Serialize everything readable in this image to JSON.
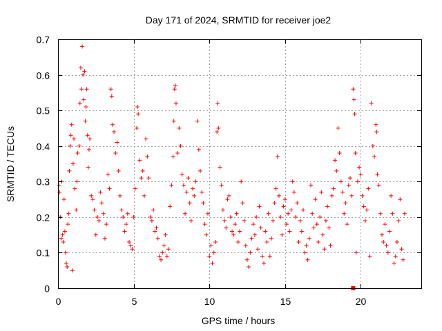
{
  "chart_data": {
    "type": "scatter",
    "title": "Day 171 of 2024, SRMTID for receiver joe2",
    "xlabel": "GPS time / hours",
    "ylabel": "SRMTID / TECUs",
    "xlim": [
      0,
      24
    ],
    "ylim": [
      0,
      0.7
    ],
    "xticks": [
      0,
      5,
      10,
      15,
      20
    ],
    "xtick_labels": [
      "0",
      "5",
      "10",
      "15",
      "20"
    ],
    "yticks": [
      0,
      0.1,
      0.2,
      0.3,
      0.4,
      0.5,
      0.6,
      0.7
    ],
    "ytick_labels": [
      "0",
      "0.1",
      "0.2",
      "0.3",
      "0.4",
      "0.5",
      "0.6",
      "0.7"
    ],
    "grid": true,
    "marker": "+",
    "color": "#ff0000",
    "series": [
      {
        "name": "SRMTID",
        "points": [
          [
            0.05,
            0.29
          ],
          [
            0.1,
            0.27
          ],
          [
            0.15,
            0.2
          ],
          [
            0.2,
            0.14
          ],
          [
            0.25,
            0.3
          ],
          [
            0.3,
            0.15
          ],
          [
            0.35,
            0.13
          ],
          [
            0.4,
            0.25
          ],
          [
            0.45,
            0.16
          ],
          [
            0.5,
            0.1
          ],
          [
            0.55,
            0.07
          ],
          [
            0.6,
            0.06
          ],
          [
            0.65,
            0.18
          ],
          [
            0.7,
            0.21
          ],
          [
            0.75,
            0.33
          ],
          [
            0.8,
            0.4
          ],
          [
            0.85,
            0.43
          ],
          [
            0.9,
            0.46
          ],
          [
            0.95,
            0.05
          ],
          [
            1.0,
            0.35
          ],
          [
            1.05,
            0.42
          ],
          [
            1.1,
            0.28
          ],
          [
            1.2,
            0.22
          ],
          [
            1.25,
            0.3
          ],
          [
            1.3,
            0.38
          ],
          [
            1.4,
            0.4
          ],
          [
            1.45,
            0.52
          ],
          [
            1.5,
            0.62
          ],
          [
            1.55,
            0.56
          ],
          [
            1.6,
            0.68
          ],
          [
            1.65,
            0.6
          ],
          [
            1.7,
            0.53
          ],
          [
            1.75,
            0.61
          ],
          [
            1.8,
            0.47
          ],
          [
            1.85,
            0.51
          ],
          [
            1.9,
            0.56
          ],
          [
            1.95,
            0.43
          ],
          [
            2.0,
            0.34
          ],
          [
            2.05,
            0.39
          ],
          [
            2.1,
            0.42
          ],
          [
            2.2,
            0.26
          ],
          [
            2.3,
            0.25
          ],
          [
            2.4,
            0.22
          ],
          [
            2.5,
            0.15
          ],
          [
            2.6,
            0.2
          ],
          [
            2.7,
            0.19
          ],
          [
            2.8,
            0.27
          ],
          [
            2.9,
            0.24
          ],
          [
            3.0,
            0.21
          ],
          [
            3.1,
            0.14
          ],
          [
            3.2,
            0.18
          ],
          [
            3.3,
            0.32
          ],
          [
            3.4,
            0.28
          ],
          [
            3.5,
            0.56
          ],
          [
            3.55,
            0.54
          ],
          [
            3.6,
            0.46
          ],
          [
            3.7,
            0.44
          ],
          [
            3.8,
            0.38
          ],
          [
            3.9,
            0.41
          ],
          [
            4.0,
            0.33
          ],
          [
            4.1,
            0.26
          ],
          [
            4.2,
            0.22
          ],
          [
            4.3,
            0.2
          ],
          [
            4.4,
            0.16
          ],
          [
            4.5,
            0.18
          ],
          [
            4.6,
            0.21
          ],
          [
            4.7,
            0.13
          ],
          [
            4.8,
            0.12
          ],
          [
            4.9,
            0.11
          ],
          [
            5.0,
            0.2
          ],
          [
            5.1,
            0.28
          ],
          [
            5.2,
            0.45
          ],
          [
            5.25,
            0.51
          ],
          [
            5.3,
            0.49
          ],
          [
            5.4,
            0.36
          ],
          [
            5.5,
            0.31
          ],
          [
            5.6,
            0.33
          ],
          [
            5.7,
            0.26
          ],
          [
            5.8,
            0.42
          ],
          [
            5.9,
            0.37
          ],
          [
            6.0,
            0.31
          ],
          [
            6.1,
            0.2
          ],
          [
            6.2,
            0.19
          ],
          [
            6.3,
            0.22
          ],
          [
            6.4,
            0.16
          ],
          [
            6.5,
            0.17
          ],
          [
            6.6,
            0.14
          ],
          [
            6.7,
            0.09
          ],
          [
            6.8,
            0.08
          ],
          [
            6.9,
            0.1
          ],
          [
            7.0,
            0.12
          ],
          [
            7.1,
            0.15
          ],
          [
            7.2,
            0.09
          ],
          [
            7.3,
            0.11
          ],
          [
            7.4,
            0.23
          ],
          [
            7.5,
            0.29
          ],
          [
            7.6,
            0.37
          ],
          [
            7.65,
            0.47
          ],
          [
            7.7,
            0.56
          ],
          [
            7.75,
            0.57
          ],
          [
            7.8,
            0.52
          ],
          [
            7.9,
            0.38
          ],
          [
            8.0,
            0.45
          ],
          [
            8.1,
            0.4
          ],
          [
            8.2,
            0.32
          ],
          [
            8.3,
            0.29
          ],
          [
            8.4,
            0.21
          ],
          [
            8.5,
            0.27
          ],
          [
            8.6,
            0.31
          ],
          [
            8.7,
            0.24
          ],
          [
            8.8,
            0.19
          ],
          [
            8.9,
            0.28
          ],
          [
            9.0,
            0.26
          ],
          [
            9.1,
            0.3
          ],
          [
            9.2,
            0.47
          ],
          [
            9.3,
            0.39
          ],
          [
            9.4,
            0.33
          ],
          [
            9.5,
            0.27
          ],
          [
            9.6,
            0.24
          ],
          [
            9.7,
            0.18
          ],
          [
            9.8,
            0.15
          ],
          [
            9.9,
            0.21
          ],
          [
            10.0,
            0.09
          ],
          [
            10.1,
            0.12
          ],
          [
            10.2,
            0.07
          ],
          [
            10.3,
            0.1
          ],
          [
            10.4,
            0.13
          ],
          [
            10.5,
            0.44
          ],
          [
            10.55,
            0.52
          ],
          [
            10.6,
            0.45
          ],
          [
            10.7,
            0.34
          ],
          [
            10.8,
            0.29
          ],
          [
            10.9,
            0.22
          ],
          [
            11.0,
            0.19
          ],
          [
            11.1,
            0.17
          ],
          [
            11.2,
            0.25
          ],
          [
            11.3,
            0.26
          ],
          [
            11.4,
            0.2
          ],
          [
            11.5,
            0.16
          ],
          [
            11.6,
            0.15
          ],
          [
            11.7,
            0.18
          ],
          [
            11.8,
            0.21
          ],
          [
            11.9,
            0.13
          ],
          [
            12.0,
            0.16
          ],
          [
            12.1,
            0.3
          ],
          [
            12.2,
            0.24
          ],
          [
            12.3,
            0.19
          ],
          [
            12.4,
            0.12
          ],
          [
            12.5,
            0.08
          ],
          [
            12.6,
            0.06
          ],
          [
            12.7,
            0.1
          ],
          [
            12.8,
            0.14
          ],
          [
            12.9,
            0.18
          ],
          [
            13.0,
            0.15
          ],
          [
            13.1,
            0.2
          ],
          [
            13.2,
            0.11
          ],
          [
            13.3,
            0.23
          ],
          [
            13.4,
            0.17
          ],
          [
            13.5,
            0.09
          ],
          [
            13.6,
            0.07
          ],
          [
            13.7,
            0.16
          ],
          [
            13.8,
            0.13
          ],
          [
            13.9,
            0.21
          ],
          [
            14.0,
            0.09
          ],
          [
            14.1,
            0.14
          ],
          [
            14.2,
            0.19
          ],
          [
            14.3,
            0.24
          ],
          [
            14.4,
            0.28
          ],
          [
            14.5,
            0.37
          ],
          [
            14.6,
            0.26
          ],
          [
            14.7,
            0.2
          ],
          [
            14.8,
            0.15
          ],
          [
            14.9,
            0.23
          ],
          [
            15.0,
            0.25
          ],
          [
            15.1,
            0.18
          ],
          [
            15.2,
            0.21
          ],
          [
            15.3,
            0.16
          ],
          [
            15.4,
            0.22
          ],
          [
            15.5,
            0.3
          ],
          [
            15.6,
            0.27
          ],
          [
            15.7,
            0.2
          ],
          [
            15.8,
            0.24
          ],
          [
            15.9,
            0.13
          ],
          [
            16.0,
            0.19
          ],
          [
            16.1,
            0.16
          ],
          [
            16.2,
            0.22
          ],
          [
            16.3,
            0.1
          ],
          [
            16.4,
            0.12
          ],
          [
            16.5,
            0.08
          ],
          [
            16.6,
            0.14
          ],
          [
            16.7,
            0.29
          ],
          [
            16.8,
            0.21
          ],
          [
            16.9,
            0.17
          ],
          [
            17.0,
            0.25
          ],
          [
            17.1,
            0.18
          ],
          [
            17.2,
            0.13
          ],
          [
            17.3,
            0.2
          ],
          [
            17.4,
            0.27
          ],
          [
            17.5,
            0.15
          ],
          [
            17.6,
            0.11
          ],
          [
            17.7,
            0.19
          ],
          [
            17.8,
            0.23
          ],
          [
            17.9,
            0.17
          ],
          [
            18.0,
            0.12
          ],
          [
            18.1,
            0.26
          ],
          [
            18.2,
            0.28
          ],
          [
            18.3,
            0.36
          ],
          [
            18.4,
            0.33
          ],
          [
            18.5,
            0.45
          ],
          [
            18.6,
            0.38
          ],
          [
            18.7,
            0.3
          ],
          [
            18.8,
            0.27
          ],
          [
            18.9,
            0.21
          ],
          [
            19.0,
            0.24
          ],
          [
            19.1,
            0.18
          ],
          [
            19.2,
            0.29
          ],
          [
            19.3,
            0.31
          ],
          [
            19.4,
            0.26
          ],
          [
            19.5,
            0.56
          ],
          [
            19.55,
            0.53
          ],
          [
            19.6,
            0.49
          ],
          [
            19.65,
            0.38
          ],
          [
            19.7,
            0.1
          ],
          [
            19.8,
            0.3
          ],
          [
            19.9,
            0.34
          ],
          [
            20.0,
            0.32
          ],
          [
            20.1,
            0.26
          ],
          [
            20.2,
            0.23
          ],
          [
            20.3,
            0.19
          ],
          [
            20.4,
            0.22
          ],
          [
            20.5,
            0.28
          ],
          [
            20.6,
            0.09
          ],
          [
            20.7,
            0.52
          ],
          [
            20.8,
            0.4
          ],
          [
            20.9,
            0.37
          ],
          [
            21.0,
            0.46
          ],
          [
            21.05,
            0.44
          ],
          [
            21.1,
            0.32
          ],
          [
            21.2,
            0.29
          ],
          [
            21.3,
            0.21
          ],
          [
            21.4,
            0.15
          ],
          [
            21.5,
            0.13
          ],
          [
            21.6,
            0.18
          ],
          [
            21.7,
            0.12
          ],
          [
            21.8,
            0.1
          ],
          [
            21.9,
            0.16
          ],
          [
            22.0,
            0.26
          ],
          [
            22.1,
            0.21
          ],
          [
            22.2,
            0.07
          ],
          [
            22.3,
            0.09
          ],
          [
            22.4,
            0.13
          ],
          [
            22.5,
            0.19
          ],
          [
            22.6,
            0.25
          ],
          [
            22.7,
            0.11
          ],
          [
            22.8,
            0.08
          ],
          [
            22.9,
            0.21
          ]
        ]
      }
    ],
    "extra_marker": {
      "x": 19.5,
      "y": 0,
      "shape": "square"
    }
  }
}
